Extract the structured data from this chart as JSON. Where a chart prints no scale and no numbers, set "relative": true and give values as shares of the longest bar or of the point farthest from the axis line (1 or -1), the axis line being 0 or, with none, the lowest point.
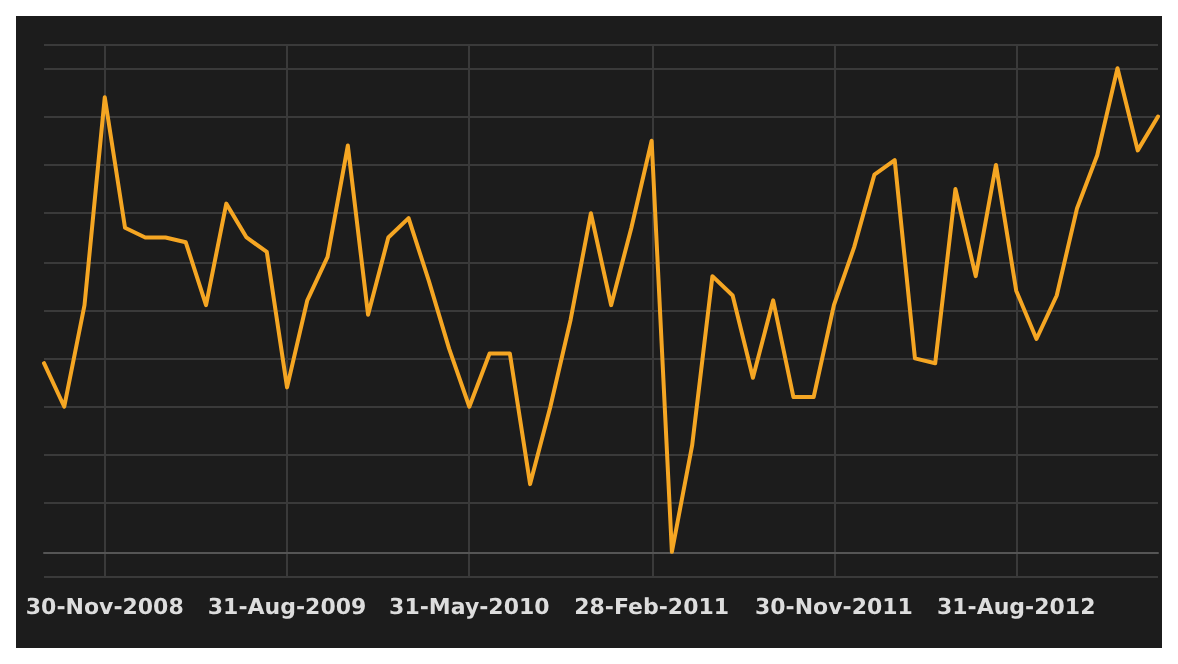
{
  "chart_data": {
    "type": "line",
    "relative": true,
    "grid": true,
    "marker": "none",
    "line_style": "solid",
    "categories": [
      null,
      null,
      null,
      "30-Nov-2008",
      null,
      null,
      null,
      null,
      null,
      null,
      null,
      null,
      "31-Aug-2009",
      null,
      null,
      null,
      null,
      null,
      null,
      null,
      null,
      "31-May-2010",
      null,
      null,
      null,
      null,
      null,
      null,
      null,
      null,
      "28-Feb-2011",
      null,
      null,
      null,
      null,
      null,
      null,
      null,
      null,
      "30-Nov-2011",
      null,
      null,
      null,
      null,
      null,
      null,
      null,
      null,
      "31-Aug-2012",
      null,
      null,
      null,
      null,
      null,
      null,
      null
    ],
    "series": [
      {
        "color": "#f5a623",
        "values": [
          0.39,
          0.3,
          0.51,
          0.94,
          0.67,
          0.65,
          0.65,
          0.64,
          0.51,
          0.72,
          0.65,
          0.62,
          0.34,
          0.52,
          0.61,
          0.84,
          0.49,
          0.65,
          0.69,
          0.56,
          0.42,
          0.3,
          0.41,
          0.41,
          0.14,
          0.3,
          0.48,
          0.7,
          0.51,
          0.67,
          0.85,
          0,
          0.22,
          0.57,
          0.53,
          0.36,
          0.52,
          0.32,
          0.32,
          0.51,
          0.63,
          0.78,
          0.81,
          0.4,
          0.39,
          0.75,
          0.57,
          0.8,
          0.54,
          0.44,
          0.53,
          0.71,
          0.82,
          1,
          0.83,
          0.9
        ]
      }
    ]
  }
}
